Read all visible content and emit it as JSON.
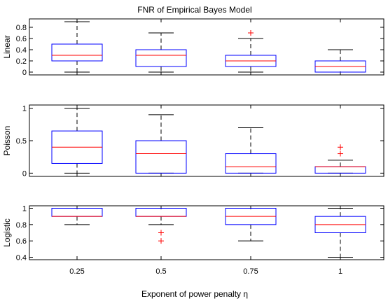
{
  "figure": {
    "title": "FNR of Empirical Bayes Model",
    "xlabel": "Exponent of power penalty η"
  },
  "colors": {
    "box": "#0000ff",
    "median": "#ff0000",
    "whisker": "#000000",
    "outlier": "#ff0000",
    "axes": "#000000"
  },
  "chart_data": [
    {
      "type": "box",
      "ylabel": "Linear",
      "categories": [
        "0.25",
        "0.5",
        "0.75",
        "1"
      ],
      "ylim": [
        -0.05,
        0.95
      ],
      "yticks": [
        0,
        0.2,
        0.4,
        0.6,
        0.8
      ],
      "ytick_labels": [
        "0",
        "0.2",
        "0.4",
        "0.6",
        "0.8"
      ],
      "boxes": [
        {
          "whisker_low": 0.0,
          "q1": 0.2,
          "median": 0.3,
          "q3": 0.5,
          "whisker_high": 0.9,
          "outliers": []
        },
        {
          "whisker_low": 0.0,
          "q1": 0.1,
          "median": 0.3,
          "q3": 0.4,
          "whisker_high": 0.7,
          "outliers": []
        },
        {
          "whisker_low": 0.0,
          "q1": 0.1,
          "median": 0.2,
          "q3": 0.3,
          "whisker_high": 0.6,
          "outliers": [
            0.7
          ]
        },
        {
          "whisker_low": 0.0,
          "q1": 0.0,
          "median": 0.1,
          "q3": 0.2,
          "whisker_high": 0.4,
          "outliers": []
        }
      ]
    },
    {
      "type": "box",
      "ylabel": "Poisson",
      "categories": [
        "0.25",
        "0.5",
        "0.75",
        "1"
      ],
      "ylim": [
        -0.05,
        1.05
      ],
      "yticks": [
        0,
        0.5,
        1
      ],
      "ytick_labels": [
        "0",
        "0.5",
        "1"
      ],
      "boxes": [
        {
          "whisker_low": 0.0,
          "q1": 0.15,
          "median": 0.4,
          "q3": 0.65,
          "whisker_high": 1.0,
          "outliers": []
        },
        {
          "whisker_low": 0.0,
          "q1": 0.0,
          "median": 0.3,
          "q3": 0.5,
          "whisker_high": 0.9,
          "outliers": []
        },
        {
          "whisker_low": 0.0,
          "q1": 0.0,
          "median": 0.1,
          "q3": 0.3,
          "whisker_high": 0.7,
          "outliers": []
        },
        {
          "whisker_low": 0.0,
          "q1": 0.0,
          "median": 0.1,
          "q3": 0.1,
          "whisker_high": 0.2,
          "outliers": [
            0.3,
            0.4
          ]
        }
      ]
    },
    {
      "type": "box",
      "ylabel": "Logistic",
      "categories": [
        "0.25",
        "0.5",
        "0.75",
        "1"
      ],
      "ylim": [
        0.37,
        1.03
      ],
      "yticks": [
        0.4,
        0.6,
        0.8,
        1
      ],
      "ytick_labels": [
        "0.4",
        "0.6",
        "0.8",
        "1"
      ],
      "boxes": [
        {
          "whisker_low": 0.8,
          "q1": 0.9,
          "median": 0.9,
          "q3": 1.0,
          "whisker_high": 1.0,
          "outliers": []
        },
        {
          "whisker_low": 0.8,
          "q1": 0.9,
          "median": 0.9,
          "q3": 1.0,
          "whisker_high": 1.0,
          "outliers": [
            0.7,
            0.6
          ]
        },
        {
          "whisker_low": 0.6,
          "q1": 0.8,
          "median": 0.9,
          "q3": 1.0,
          "whisker_high": 1.0,
          "outliers": []
        },
        {
          "whisker_low": 0.4,
          "q1": 0.7,
          "median": 0.8,
          "q3": 0.9,
          "whisker_high": 1.0,
          "outliers": []
        }
      ]
    }
  ]
}
